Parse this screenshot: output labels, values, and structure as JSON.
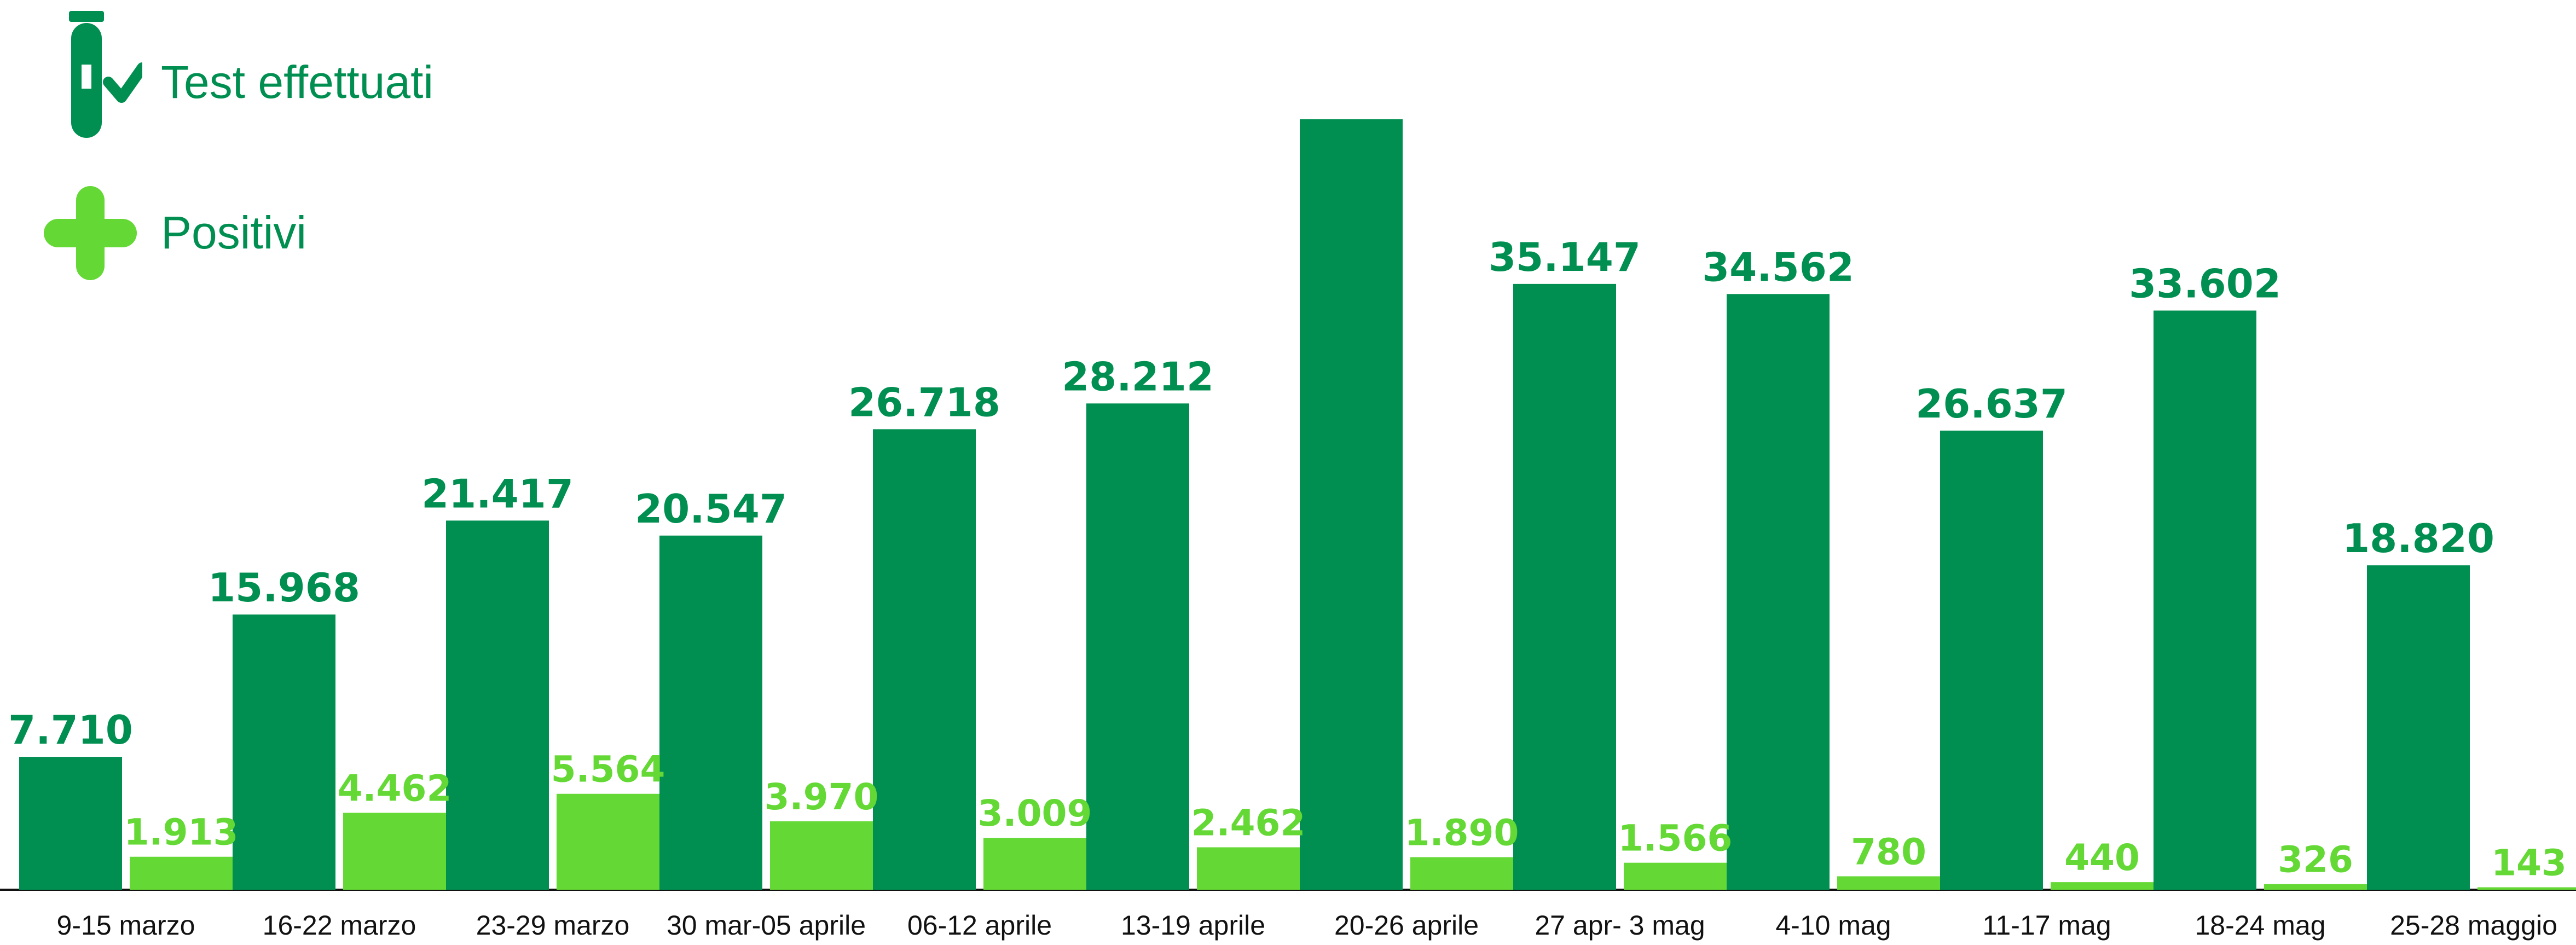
{
  "colors": {
    "tests": "#008f51",
    "positives": "#64d835",
    "axis": "#111111"
  },
  "legend": {
    "tests_label": "Test effettuati",
    "tests_icon": "test-tube-check-icon",
    "positives_label": "Positivi",
    "positives_icon": "plus-cross-icon"
  },
  "chart_data": {
    "type": "bar",
    "title": "",
    "xlabel": "",
    "ylabel": "",
    "grid": false,
    "legend_position": "top-left",
    "categories": [
      "9-15 marzo",
      "16-22 marzo",
      "23-29 marzo",
      "30 mar-05 aprile",
      "06-12 aprile",
      "13-19 aprile",
      "20-26 aprile",
      "27 apr- 3 mag",
      "4-10 mag",
      "11-17 mag",
      "18-24 mag",
      "25-28 maggio"
    ],
    "series": [
      {
        "name": "Test effettuati",
        "values": [
          7710,
          15968,
          21417,
          20547,
          26718,
          28212,
          44700,
          35147,
          34562,
          26637,
          33602,
          18820
        ],
        "labels": [
          "7.710",
          "15.968",
          "21.417",
          "20.547",
          "26.718",
          "28.212",
          "",
          "35.147",
          "34.562",
          "26.637",
          "33.602",
          "18.820"
        ]
      },
      {
        "name": "Positivi",
        "values": [
          1913,
          4462,
          5564,
          3970,
          3009,
          2462,
          1890,
          1566,
          780,
          440,
          326,
          143
        ],
        "labels": [
          "1.913",
          "4.462",
          "5.564",
          "3.970",
          "3.009",
          "2.462",
          "1.890",
          "1.566",
          "780",
          "440",
          "326",
          "143"
        ]
      }
    ]
  }
}
